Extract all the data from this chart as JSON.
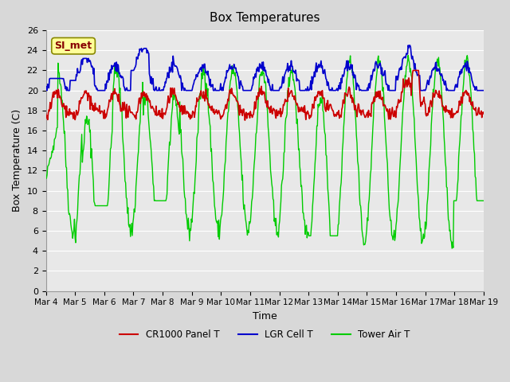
{
  "title": "Box Temperatures",
  "xlabel": "Time",
  "ylabel": "Box Temperature (C)",
  "ylim": [
    0,
    26
  ],
  "yticks": [
    0,
    2,
    4,
    6,
    8,
    10,
    12,
    14,
    16,
    18,
    20,
    22,
    24,
    26
  ],
  "xtick_labels": [
    "Mar 4",
    "Mar 5",
    "Mar 6",
    "Mar 7",
    "Mar 8",
    "Mar 9",
    "Mar 10",
    "Mar 11",
    "Mar 12",
    "Mar 13",
    "Mar 14",
    "Mar 15",
    "Mar 16",
    "Mar 17",
    "Mar 18",
    "Mar 19"
  ],
  "color_red": "#CC0000",
  "color_blue": "#0000CC",
  "color_green": "#00CC00",
  "bg_color": "#E8E8E8",
  "plot_bg": "#F0F0F0",
  "annotation_text": "SI_met",
  "annotation_fgcolor": "#880000",
  "annotation_bgcolor": "#FFFF99",
  "legend_labels": [
    "CR1000 Panel T",
    "LGR Cell T",
    "Tower Air T"
  ]
}
